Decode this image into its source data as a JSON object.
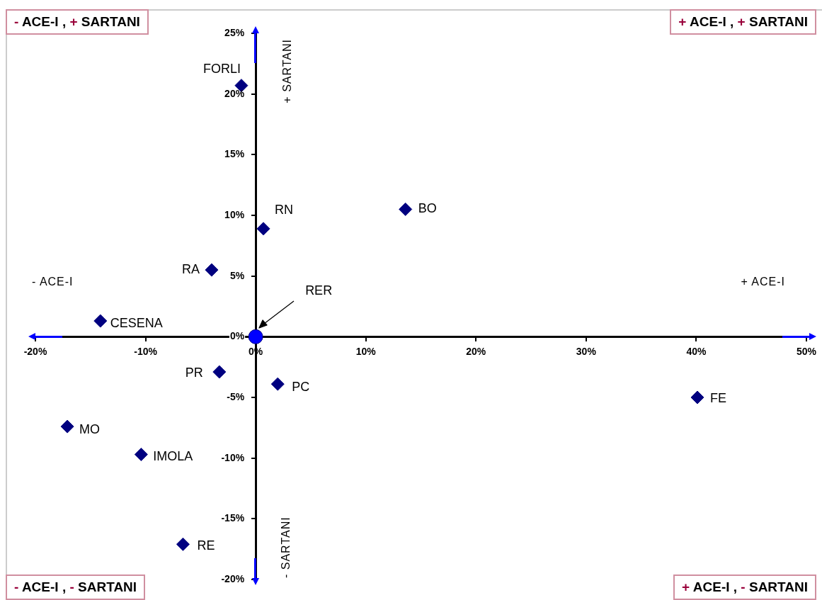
{
  "chart_data": {
    "type": "scatter",
    "series": [
      {
        "color": "#000080",
        "marker": "diamond",
        "x": [
          -1.3,
          0.7,
          13.6,
          -4.0,
          -14.1,
          -3.3,
          2.0,
          40.1,
          -17.1,
          -10.4,
          -6.6
        ],
        "values": [
          20.7,
          8.9,
          10.5,
          5.5,
          1.3,
          -2.9,
          -3.9,
          -5.0,
          -7.4,
          -9.7,
          -17.1
        ]
      },
      {
        "color": "#0000ff",
        "marker": "circle",
        "x": [
          0
        ],
        "values": [
          0
        ]
      }
    ],
    "xlim": [
      -20,
      50
    ],
    "xticks": [
      {
        "value": -20,
        "label": "-20%"
      },
      {
        "value": -10,
        "label": "-10%"
      },
      {
        "value": 0,
        "label": "0%"
      },
      {
        "value": 10,
        "label": "10%"
      },
      {
        "value": 20,
        "label": "20%"
      },
      {
        "value": 30,
        "label": "30%"
      },
      {
        "value": 40,
        "label": "40%"
      },
      {
        "value": 50,
        "label": "50%"
      }
    ],
    "ylim": [
      -20,
      25
    ],
    "yticks": [
      {
        "value": -20,
        "label": "-20%"
      },
      {
        "value": -15,
        "label": "-15%"
      },
      {
        "value": -10,
        "label": "-10%"
      },
      {
        "value": -5,
        "label": "-5%"
      },
      {
        "value": 0,
        "label": "0%"
      },
      {
        "value": 5,
        "label": "5%"
      },
      {
        "value": 10,
        "label": "10%"
      },
      {
        "value": 15,
        "label": "15%"
      },
      {
        "value": 20,
        "label": "20%"
      },
      {
        "value": 25,
        "label": "25%"
      }
    ],
    "grid": false,
    "legend": false,
    "annotations": [
      "- ACE-I , + SARTANI",
      "+ ACE-I , + SARTANI",
      "- ACE-I , - SARTANI",
      "+ ACE-I , - SARTANI",
      "- ACE-I",
      "+ ACE-I",
      "+ SARTANI",
      "- SARTANI",
      {
        "text": "FORLI",
        "x": -1.3,
        "y": 20.7
      },
      {
        "text": "RN",
        "x": 0.7,
        "y": 8.9
      },
      {
        "text": "BO",
        "x": 13.6,
        "y": 10.5
      },
      {
        "text": "RA",
        "x": -4.0,
        "y": 5.5
      },
      {
        "text": "CESENA",
        "x": -14.1,
        "y": 1.3
      },
      {
        "text": "PR",
        "x": -3.3,
        "y": -2.9
      },
      {
        "text": "PC",
        "x": 2.0,
        "y": -3.9
      },
      {
        "text": "FE",
        "x": 40.1,
        "y": -5.0
      },
      {
        "text": "MO",
        "x": -17.1,
        "y": -7.4
      },
      {
        "text": "IMOLA",
        "x": -10.4,
        "y": -9.7
      },
      {
        "text": "RE",
        "x": -6.6,
        "y": -17.1
      },
      "RER"
    ]
  }
}
